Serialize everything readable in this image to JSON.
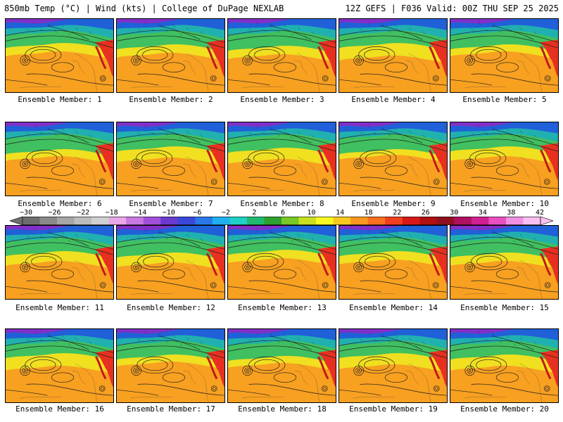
{
  "header": {
    "title": "850mb Temp (°C) | Wind (kts) | College of DuPage NEXLAB",
    "run": "12Z GEFS | F036 Valid: 00Z THU SEP 25 2025"
  },
  "members": [
    "Ensemble Member: 1",
    "Ensemble Member: 2",
    "Ensemble Member: 3",
    "Ensemble Member: 4",
    "Ensemble Member: 5",
    "Ensemble Member: 6",
    "Ensemble Member: 7",
    "Ensemble Member: 8",
    "Ensemble Member: 9",
    "Ensemble Member: 10",
    "Ensemble Member: 11",
    "Ensemble Member: 12",
    "Ensemble Member: 13",
    "Ensemble Member: 14",
    "Ensemble Member: 15",
    "Ensemble Member: 16",
    "Ensemble Member: 17",
    "Ensemble Member: 18",
    "Ensemble Member: 19",
    "Ensemble Member: 20"
  ],
  "colorbar": {
    "labels": [
      "−30",
      "−26",
      "−22",
      "−18",
      "−14",
      "−10",
      "−6",
      "−2",
      "2",
      "6",
      "10",
      "14",
      "18",
      "22",
      "26",
      "30",
      "34",
      "38",
      "42"
    ],
    "colors": [
      "#6e6e6e",
      "#8a8a8a",
      "#a6a6a6",
      "#bcbcbc",
      "#d0d0d0",
      "#e8a8e8",
      "#c878e0",
      "#a050d8",
      "#6a3ad0",
      "#3a48d8",
      "#2a78e8",
      "#20b0f0",
      "#20d0c8",
      "#20b870",
      "#30a030",
      "#78c828",
      "#c8e020",
      "#f8f820",
      "#f8c820",
      "#f89820",
      "#f87020",
      "#f04020",
      "#d81818",
      "#b01010",
      "#901020",
      "#b01060",
      "#d02090",
      "#e850c0",
      "#f090e0",
      "#f8c0f0"
    ]
  },
  "colors": {
    "warm": "#f8a020",
    "hot": "#e83020",
    "mid": "#f0e020",
    "cool": "#40c060",
    "cold": "#2060d8",
    "frigid": "#8030c8"
  }
}
